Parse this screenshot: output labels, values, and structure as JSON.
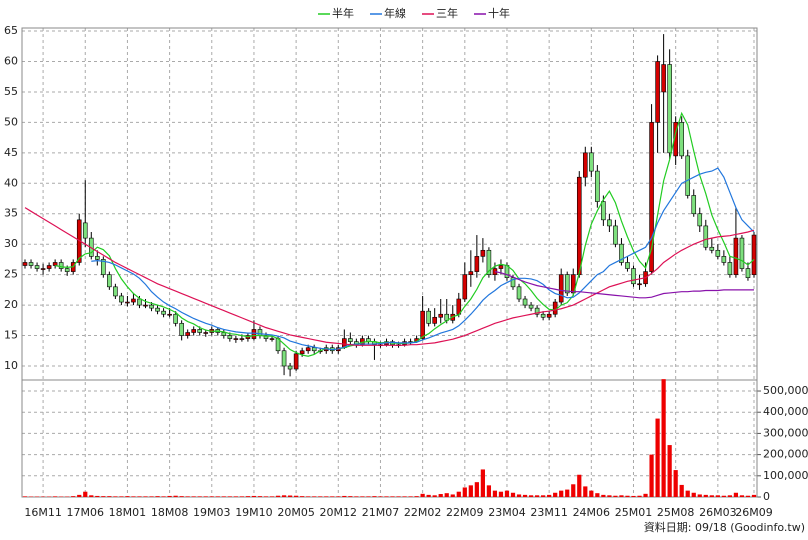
{
  "chart_data": {
    "type": "candlestick",
    "legend": {
      "position": "top"
    },
    "categories": [
      null,
      null,
      null,
      "16M11",
      null,
      null,
      null,
      null,
      null,
      null,
      "17M06",
      null,
      null,
      null,
      null,
      null,
      null,
      "18M01",
      null,
      null,
      null,
      null,
      null,
      null,
      "18M08",
      null,
      null,
      null,
      null,
      null,
      null,
      "19M03",
      null,
      null,
      null,
      null,
      null,
      null,
      "19M10",
      null,
      null,
      null,
      null,
      null,
      null,
      "20M05",
      null,
      null,
      null,
      null,
      null,
      null,
      "20M12",
      null,
      null,
      null,
      null,
      null,
      null,
      "21M07",
      null,
      null,
      null,
      null,
      null,
      null,
      "22M02",
      null,
      null,
      null,
      null,
      null,
      null,
      "22M09",
      null,
      null,
      null,
      null,
      null,
      null,
      "23M04",
      null,
      null,
      null,
      null,
      null,
      null,
      "23M11",
      null,
      null,
      null,
      null,
      null,
      null,
      "24M06",
      null,
      null,
      null,
      null,
      null,
      null,
      "25M01",
      null,
      null,
      null,
      null,
      null,
      null,
      "25M08",
      null,
      null,
      null,
      null,
      null,
      null,
      "26M03",
      null,
      null,
      null,
      null,
      null,
      "26M09"
    ],
    "open": [
      26.5,
      27,
      26.5,
      26,
      26,
      26.5,
      27,
      26,
      25.5,
      27,
      33.5,
      31,
      28,
      27.5,
      25,
      23,
      21.5,
      20.5,
      20.5,
      21,
      20,
      20,
      19.5,
      19,
      18.5,
      18.5,
      17,
      15,
      15.5,
      16,
      15.5,
      15.5,
      16,
      15.5,
      15,
      14.5,
      14.5,
      14.5,
      14.5,
      16,
      15,
      14.5,
      14.5,
      12.5,
      10,
      9.5,
      12,
      12.5,
      13,
      12.5,
      12.5,
      13,
      12.5,
      13,
      14.5,
      14,
      13.5,
      14.5,
      14,
      13.5,
      13.5,
      14,
      13.5,
      13.5,
      14,
      14,
      14.5,
      19,
      17,
      18,
      18.5,
      17.5,
      18.5,
      21,
      25,
      25.5,
      28,
      29,
      25,
      26,
      26.5,
      24.5,
      23,
      21,
      20,
      19.5,
      18.5,
      18,
      18.5,
      20.5,
      25,
      22,
      25,
      41,
      45,
      42,
      37,
      34,
      33,
      30,
      27,
      26,
      23.5,
      23.5,
      25.5,
      50,
      55,
      59.5,
      44.5,
      50,
      44.5,
      38,
      35,
      33,
      29.5,
      29,
      28,
      27,
      25,
      31,
      26,
      25
    ],
    "high": [
      27.5,
      27.5,
      27,
      26.8,
      27,
      27.5,
      27.5,
      26.5,
      27.5,
      35,
      40.5,
      32,
      29,
      28,
      25.5,
      23.5,
      22,
      21.5,
      22,
      21.5,
      21,
      20.5,
      20,
      19.5,
      19.5,
      19,
      17.5,
      16,
      16.5,
      16.5,
      16,
      16.5,
      16.3,
      16,
      15.5,
      15,
      15.2,
      15.5,
      17.5,
      16.5,
      15.5,
      15,
      15,
      13,
      10.5,
      12.5,
      13,
      13.5,
      13.5,
      13,
      13.5,
      13.5,
      13.5,
      16,
      15.5,
      14.5,
      15,
      15,
      14.5,
      14,
      14.5,
      14.3,
      14,
      14.5,
      14.5,
      15,
      21.5,
      19.5,
      19.5,
      21,
      21,
      20,
      22,
      27,
      29,
      31.5,
      31,
      29.5,
      27,
      27.5,
      27,
      25,
      23.5,
      21.5,
      20.5,
      20,
      19,
      19,
      21,
      26,
      25.5,
      26,
      42,
      46,
      46,
      43,
      38,
      35,
      34,
      31,
      28,
      26.5,
      25,
      27,
      53,
      61,
      64.5,
      62,
      51,
      51,
      45.5,
      39,
      36,
      34,
      31,
      30,
      29,
      28,
      36,
      31.5,
      27,
      32
    ],
    "low": [
      26,
      26,
      25.5,
      25,
      25.5,
      26,
      25.5,
      24.8,
      25,
      26.5,
      29.5,
      27.5,
      26.5,
      24.5,
      22.5,
      21,
      20,
      19.8,
      20,
      19.5,
      19.5,
      19,
      18.5,
      18,
      18,
      16.5,
      14.2,
      14.5,
      15,
      15,
      14.8,
      15,
      15,
      14.5,
      14,
      13.8,
      14,
      14,
      14.2,
      14.5,
      14,
      14,
      12,
      8.5,
      8.3,
      9.2,
      11.5,
      12,
      12,
      12,
      12,
      12,
      12,
      12.8,
      13.5,
      13,
      13.2,
      13.5,
      11,
      13,
      13.2,
      13,
      13,
      13.2,
      13.5,
      13.8,
      14.2,
      16.5,
      16.5,
      17,
      17,
      17,
      18,
      20.5,
      23,
      24.5,
      27,
      24.5,
      24,
      25,
      24,
      22.5,
      20.5,
      19.5,
      19,
      18,
      17.5,
      17.5,
      18,
      20,
      21.5,
      21.5,
      24.5,
      39.5,
      41,
      36,
      33,
      32,
      29.5,
      26.5,
      25.5,
      23,
      22.5,
      23,
      25,
      45,
      45,
      44,
      43,
      44,
      37.5,
      34.5,
      32,
      29,
      28.5,
      27.5,
      26.5,
      24.5,
      24.5,
      25.5,
      24,
      24.5
    ],
    "close": [
      27,
      26.5,
      26,
      26,
      26.5,
      27,
      26,
      25.5,
      27,
      34,
      31,
      28,
      27.5,
      25,
      23,
      21.5,
      20.5,
      20.5,
      21,
      20,
      20,
      19.5,
      19,
      18.5,
      18.5,
      17,
      15,
      15.5,
      16,
      15.5,
      15.5,
      16,
      15.5,
      15,
      14.5,
      14.5,
      14.5,
      15,
      16,
      15,
      14.5,
      14.5,
      12.5,
      10,
      9.5,
      12,
      12.5,
      13,
      12.5,
      12.5,
      13,
      12.5,
      13,
      14.5,
      14,
      13.5,
      14.5,
      14,
      13.5,
      13.5,
      14,
      13.5,
      13.5,
      14,
      14,
      14.5,
      19,
      17,
      18,
      18.5,
      17.5,
      18.5,
      21,
      25,
      25.5,
      28,
      29,
      25,
      26,
      26.5,
      24.5,
      23,
      21,
      20,
      19.5,
      18.5,
      18,
      18.5,
      20.5,
      25,
      22,
      25,
      41,
      45,
      42,
      37,
      34,
      33,
      30,
      27,
      26,
      23.5,
      23.5,
      25.5,
      50,
      60,
      59.5,
      45,
      50,
      44.5,
      38,
      35,
      33,
      29.5,
      29,
      28,
      27,
      25,
      31,
      26,
      24.5,
      31.5
    ],
    "up_color": "#d40000",
    "down_color": "#7ee07e",
    "ylim": [
      7.7,
      65.5
    ],
    "yticks": [
      10,
      15,
      20,
      25,
      30,
      35,
      40,
      45,
      50,
      55,
      60,
      65
    ],
    "grid": true,
    "series": [
      {
        "name": "半年",
        "color": "#22cc22",
        "values": [
          null,
          null,
          null,
          null,
          null,
          26.5,
          26.3,
          26.2,
          26.3,
          27.7,
          28.4,
          28.6,
          29.5,
          29.1,
          28.1,
          26,
          24.3,
          23,
          21.9,
          21.1,
          20.6,
          20.3,
          20,
          19.7,
          19.3,
          18.8,
          17.9,
          17.3,
          16.9,
          16.3,
          15.9,
          15.7,
          15.7,
          15.6,
          15.3,
          15.2,
          15,
          14.8,
          15,
          15,
          14.9,
          14.9,
          14.5,
          13.6,
          12.7,
          12.2,
          11.8,
          11.6,
          11.9,
          12.5,
          12.9,
          12.7,
          12.8,
          13,
          13.3,
          13.5,
          13.9,
          14,
          14,
          13.8,
          13.9,
          13.8,
          13.7,
          13.7,
          13.8,
          14,
          14.8,
          15.3,
          16.1,
          16.8,
          17.4,
          18.1,
          18.4,
          19.8,
          21,
          22.6,
          24.5,
          25.6,
          26.4,
          26.7,
          26.5,
          25.7,
          24.3,
          23.5,
          22.4,
          21.1,
          20.1,
          19.3,
          19.2,
          20,
          20.4,
          21.6,
          25.3,
          29.8,
          33.3,
          35.5,
          37.3,
          38.7,
          36.8,
          33.8,
          31.2,
          28.9,
          27.2,
          26.1,
          29.3,
          34.8,
          40.4,
          43.9,
          48.3,
          51.5,
          49.6,
          45.3,
          41.3,
          38.3,
          34.8,
          32.4,
          30.3,
          28,
          27.7,
          27.3,
          26.6,
          27.5
        ]
      },
      {
        "name": "年線",
        "color": "#2277dd",
        "values": [
          null,
          null,
          null,
          null,
          null,
          null,
          null,
          null,
          null,
          null,
          null,
          27.2,
          27.3,
          27.2,
          27,
          26.6,
          26.1,
          25.6,
          25.1,
          24.4,
          23.4,
          22.2,
          21.3,
          20.5,
          19.9,
          19.4,
          18.8,
          18.3,
          17.8,
          17.4,
          17,
          16.7,
          16.3,
          16,
          15.8,
          15.6,
          15.5,
          15.4,
          15.4,
          15.3,
          15.2,
          15.1,
          14.9,
          14.6,
          14.1,
          13.8,
          13.5,
          13.3,
          13.1,
          12.9,
          12.8,
          12.7,
          12.8,
          13.1,
          13.5,
          13.6,
          13.6,
          13.6,
          13.6,
          13.7,
          13.8,
          13.9,
          13.8,
          13.8,
          13.8,
          13.9,
          14.3,
          14.6,
          15,
          15.4,
          15.7,
          16,
          16.6,
          17.5,
          18.5,
          19.6,
          20.8,
          21.7,
          22.4,
          23.2,
          23.7,
          24.2,
          24.4,
          24.4,
          24.3,
          24,
          23.4,
          22.5,
          21.9,
          21.6,
          21.2,
          21.3,
          22,
          23,
          24,
          25,
          25.5,
          26.5,
          27,
          27.5,
          28,
          28.5,
          29,
          29.5,
          31,
          33.5,
          35.5,
          37,
          38.5,
          40,
          40.5,
          41,
          41.5,
          41.8,
          42,
          42.5,
          41,
          38.5,
          36,
          34,
          33,
          32
        ]
      },
      {
        "name": "三年",
        "color": "#dd1155",
        "values": [
          36,
          35.4,
          34.8,
          34.2,
          33.6,
          33,
          32.4,
          31.8,
          31.2,
          30.6,
          30,
          29.4,
          28.8,
          28.2,
          27.6,
          27,
          26.5,
          26,
          25.5,
          25,
          24.5,
          24,
          23.5,
          23.1,
          22.7,
          22.3,
          21.9,
          21.5,
          21.1,
          20.7,
          20.3,
          19.9,
          19.5,
          19.1,
          18.7,
          18.3,
          17.9,
          17.5,
          17.1,
          16.7,
          16.3,
          16,
          15.7,
          15.4,
          15.1,
          14.9,
          14.7,
          14.5,
          14.3,
          14.1,
          13.9,
          13.8,
          13.7,
          13.6,
          13.5,
          13.4,
          13.4,
          13.4,
          13.4,
          13.4,
          13.4,
          13.4,
          13.4,
          13.4,
          13.5,
          13.5,
          13.6,
          13.7,
          13.8,
          14,
          14.2,
          14.4,
          14.7,
          15,
          15.4,
          15.8,
          16.2,
          16.6,
          17,
          17.3,
          17.6,
          17.9,
          18.1,
          18.3,
          18.5,
          18.7,
          18.9,
          19,
          19.2,
          19.4,
          19.7,
          20,
          20.5,
          21,
          21.5,
          22,
          22.5,
          23,
          23.3,
          23.6,
          23.9,
          24.1,
          24.3,
          24.5,
          25.2,
          26,
          27,
          27.7,
          28.4,
          29,
          29.5,
          30,
          30.4,
          30.8,
          31,
          31.2,
          31.3,
          31.4,
          31.6,
          31.8,
          32,
          32.3
        ]
      },
      {
        "name": "十年",
        "color": "#8811aa",
        "values": [
          null,
          null,
          null,
          null,
          null,
          null,
          null,
          null,
          null,
          null,
          null,
          null,
          null,
          null,
          null,
          null,
          null,
          null,
          null,
          null,
          null,
          null,
          null,
          null,
          null,
          null,
          null,
          null,
          null,
          null,
          null,
          null,
          null,
          null,
          null,
          null,
          null,
          null,
          null,
          null,
          null,
          null,
          null,
          null,
          null,
          null,
          null,
          null,
          null,
          null,
          null,
          null,
          null,
          null,
          null,
          null,
          null,
          null,
          null,
          null,
          null,
          null,
          null,
          null,
          null,
          null,
          null,
          null,
          null,
          null,
          null,
          null,
          null,
          null,
          null,
          null,
          null,
          null,
          25.5,
          25.3,
          25,
          24.6,
          24.2,
          23.8,
          23.5,
          23.2,
          23,
          22.8,
          22.6,
          22.4,
          22.3,
          22.2,
          22.2,
          22.1,
          22,
          21.9,
          21.8,
          21.7,
          21.6,
          21.5,
          21.4,
          21.3,
          21.2,
          21.2,
          21.3,
          21.6,
          21.9,
          22,
          22.1,
          22.2,
          22.2,
          22.3,
          22.3,
          22.4,
          22.4,
          22.4,
          22.5,
          22.5,
          22.5,
          22.5,
          22.5,
          22.5
        ]
      }
    ],
    "volume": {
      "color": "#ee0000",
      "ylim": [
        0,
        552000
      ],
      "yticks": [
        0,
        {
          "value": 100000,
          "label": "100,000"
        },
        {
          "value": 200000,
          "label": "200,000"
        },
        {
          "value": 300000,
          "label": "300,000"
        },
        {
          "value": 400000,
          "label": "400,000"
        },
        {
          "value": 500000,
          "label": "500,000"
        }
      ],
      "values": [
        3000,
        2000,
        2000,
        2000,
        2000,
        3000,
        2000,
        2000,
        4000,
        10000,
        25000,
        8000,
        5000,
        4000,
        4000,
        3000,
        3000,
        4000,
        3000,
        3000,
        3000,
        3000,
        4000,
        3000,
        5000,
        6000,
        4000,
        3000,
        3000,
        3000,
        3000,
        3000,
        3000,
        3000,
        3000,
        3000,
        3000,
        4000,
        5000,
        4000,
        3000,
        3000,
        6000,
        8000,
        7000,
        6000,
        4000,
        3000,
        3000,
        3000,
        3000,
        3000,
        3000,
        5000,
        4000,
        3000,
        3000,
        3000,
        4000,
        3000,
        3000,
        3000,
        3000,
        3000,
        3000,
        4000,
        15000,
        10000,
        8000,
        14000,
        18000,
        12000,
        25000,
        45000,
        55000,
        70000,
        130000,
        55000,
        30000,
        25000,
        30000,
        20000,
        12000,
        10000,
        8000,
        8000,
        8000,
        10000,
        20000,
        30000,
        35000,
        60000,
        105000,
        50000,
        30000,
        18000,
        10000,
        8000,
        6000,
        8000,
        6000,
        5000,
        6000,
        15000,
        200000,
        370000,
        556000,
        245000,
        127000,
        57000,
        30000,
        20000,
        12000,
        10000,
        8000,
        8000,
        6000,
        8000,
        20000,
        8000,
        6000,
        10000
      ]
    },
    "source": "資料日期: 09/18 (Goodinfo.tw)"
  }
}
